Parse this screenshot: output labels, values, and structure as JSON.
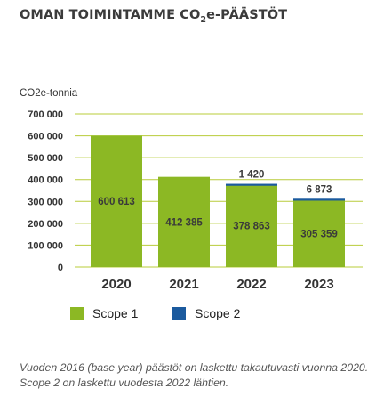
{
  "title": {
    "main": "OMAN TOIMINTAMME CO",
    "subscript": "2",
    "suffix": "e-PÄÄSTÖT"
  },
  "chart_data": {
    "type": "bar",
    "stacked": true,
    "ylabel": "CO2e-tonnia",
    "ylim": [
      0,
      700000
    ],
    "yticks": [
      0,
      100000,
      200000,
      300000,
      400000,
      500000,
      600000,
      700000
    ],
    "ytick_labels": [
      "0",
      "100 000",
      "200 000",
      "300 000",
      "400 000",
      "500 000",
      "600 000",
      "700 000"
    ],
    "categories": [
      "2020",
      "2021",
      "2022",
      "2023"
    ],
    "series": [
      {
        "name": "Scope 1",
        "color": "#8cb824",
        "values": [
          600613,
          412385,
          378863,
          305359
        ],
        "labels": [
          "600 613",
          "412 385",
          "378 863",
          "305 359"
        ]
      },
      {
        "name": "Scope 2",
        "color": "#1b5a9e",
        "values": [
          0,
          0,
          1420,
          6873
        ],
        "labels": [
          "",
          "",
          "1 420",
          "6 873"
        ]
      }
    ],
    "grid": true,
    "gridline_color": "#b8cc3a",
    "legend_position": "bottom"
  },
  "legend": {
    "scope1": "Scope 1",
    "scope2": "Scope 2"
  },
  "footnote": "Vuoden 2016 (base year) päästöt on laskettu takautuvasti vuonna 2020. Scope 2 on laskettu vuodesta 2022 lähtien."
}
